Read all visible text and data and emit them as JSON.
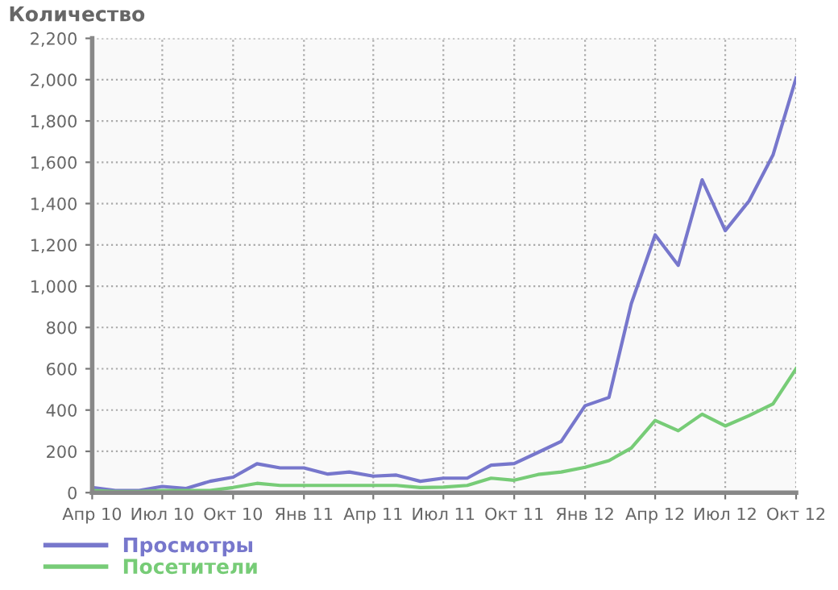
{
  "chart_data": {
    "type": "line",
    "title": "Количество",
    "x": [
      "2010-04",
      "2010-05",
      "2010-06",
      "2010-07",
      "2010-08",
      "2010-09",
      "2010-10",
      "2010-11",
      "2010-12",
      "2011-01",
      "2011-02",
      "2011-03",
      "2011-04",
      "2011-05",
      "2011-06",
      "2011-07",
      "2011-08",
      "2011-09",
      "2011-10",
      "2011-11",
      "2011-12",
      "2012-01",
      "2012-02",
      "2012-03",
      "2012-04",
      "2012-05",
      "2012-06",
      "2012-07",
      "2012-08",
      "2012-09",
      "2012-10"
    ],
    "series": [
      {
        "name": "Просмотры",
        "color": "#7777cc",
        "values": [
          25,
          10,
          10,
          30,
          20,
          55,
          75,
          140,
          120,
          120,
          90,
          100,
          80,
          85,
          55,
          70,
          70,
          133,
          141,
          195,
          248,
          421,
          461,
          915,
          1248,
          1101,
          1515,
          1269,
          1413,
          1635,
          2008
        ]
      },
      {
        "name": "Посетители",
        "color": "#77cc77",
        "values": [
          10,
          5,
          5,
          10,
          10,
          10,
          25,
          45,
          35,
          35,
          35,
          35,
          35,
          35,
          25,
          27,
          35,
          70,
          60,
          88,
          100,
          123,
          155,
          216,
          350,
          300,
          380,
          323,
          373,
          430,
          600
        ]
      }
    ],
    "xlim": [
      "2010-04",
      "2012-10"
    ],
    "xticks": [
      {
        "value": "2010-04",
        "label": "Апр 10"
      },
      {
        "value": "2010-07",
        "label": "Июл 10"
      },
      {
        "value": "2010-10",
        "label": "Окт 10"
      },
      {
        "value": "2011-01",
        "label": "Янв 11"
      },
      {
        "value": "2011-04",
        "label": "Апр 11"
      },
      {
        "value": "2011-07",
        "label": "Июл 11"
      },
      {
        "value": "2011-10",
        "label": "Окт 11"
      },
      {
        "value": "2012-01",
        "label": "Янв 12"
      },
      {
        "value": "2012-04",
        "label": "Апр 12"
      },
      {
        "value": "2012-07",
        "label": "Июл 12"
      },
      {
        "value": "2012-10",
        "label": "Окт 12"
      }
    ],
    "ylim": [
      0,
      2200
    ],
    "yticks": [
      {
        "value": 0,
        "label": "0"
      },
      {
        "value": 200,
        "label": "200"
      },
      {
        "value": 400,
        "label": "400"
      },
      {
        "value": 600,
        "label": "600"
      },
      {
        "value": 800,
        "label": "800"
      },
      {
        "value": 1000,
        "label": "1,000"
      },
      {
        "value": 1200,
        "label": "1,200"
      },
      {
        "value": 1400,
        "label": "1,400"
      },
      {
        "value": 1600,
        "label": "1,600"
      },
      {
        "value": 1800,
        "label": "1,800"
      },
      {
        "value": 2000,
        "label": "2,000"
      },
      {
        "value": 2200,
        "label": "2,200"
      }
    ],
    "grid": true,
    "legend": "bottom left",
    "marker": "none",
    "line_style": "solid"
  }
}
